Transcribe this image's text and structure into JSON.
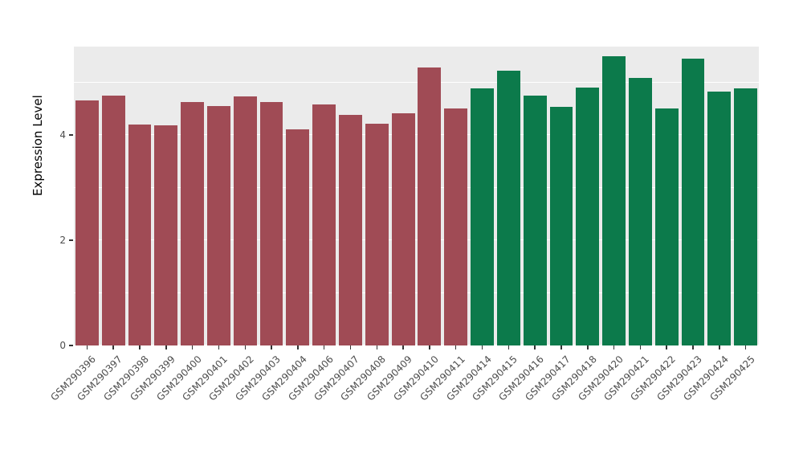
{
  "chart_data": {
    "type": "bar",
    "title": "",
    "xlabel": "",
    "ylabel": "Expression Level",
    "ylim": [
      0,
      5.68
    ],
    "yticks": [
      0,
      2,
      4
    ],
    "yticks_minor": [
      1,
      3,
      5
    ],
    "legend": "none",
    "panel_background": "#EBEBEB",
    "grid_color": "#FFFFFF",
    "group_colors": {
      "maroon": "#A04B55",
      "green": "#0C7A4B"
    },
    "categories": [
      "GSM290396",
      "GSM290397",
      "GSM290398",
      "GSM290399",
      "GSM290400",
      "GSM290401",
      "GSM290402",
      "GSM290403",
      "GSM290404",
      "GSM290406",
      "GSM290407",
      "GSM290408",
      "GSM290409",
      "GSM290410",
      "GSM290411",
      "GSM290414",
      "GSM290415",
      "GSM290416",
      "GSM290417",
      "GSM290418",
      "GSM290420",
      "GSM290421",
      "GSM290422",
      "GSM290423",
      "GSM290424",
      "GSM290425"
    ],
    "bars": [
      {
        "label": "GSM290396",
        "value": 4.65,
        "group": "maroon"
      },
      {
        "label": "GSM290397",
        "value": 4.75,
        "group": "maroon"
      },
      {
        "label": "GSM290398",
        "value": 4.2,
        "group": "maroon"
      },
      {
        "label": "GSM290399",
        "value": 4.18,
        "group": "maroon"
      },
      {
        "label": "GSM290400",
        "value": 4.62,
        "group": "maroon"
      },
      {
        "label": "GSM290401",
        "value": 4.55,
        "group": "maroon"
      },
      {
        "label": "GSM290402",
        "value": 4.73,
        "group": "maroon"
      },
      {
        "label": "GSM290403",
        "value": 4.63,
        "group": "maroon"
      },
      {
        "label": "GSM290404",
        "value": 4.1,
        "group": "maroon"
      },
      {
        "label": "GSM290406",
        "value": 4.58,
        "group": "maroon"
      },
      {
        "label": "GSM290407",
        "value": 4.38,
        "group": "maroon"
      },
      {
        "label": "GSM290408",
        "value": 4.22,
        "group": "maroon"
      },
      {
        "label": "GSM290409",
        "value": 4.42,
        "group": "maroon"
      },
      {
        "label": "GSM290410",
        "value": 5.28,
        "group": "maroon"
      },
      {
        "label": "GSM290411",
        "value": 4.5,
        "group": "maroon"
      },
      {
        "label": "GSM290414",
        "value": 4.88,
        "group": "green"
      },
      {
        "label": "GSM290415",
        "value": 5.22,
        "group": "green"
      },
      {
        "label": "GSM290416",
        "value": 4.75,
        "group": "green"
      },
      {
        "label": "GSM290417",
        "value": 4.53,
        "group": "green"
      },
      {
        "label": "GSM290418",
        "value": 4.9,
        "group": "green"
      },
      {
        "label": "GSM290420",
        "value": 5.5,
        "group": "green"
      },
      {
        "label": "GSM290421",
        "value": 5.08,
        "group": "green"
      },
      {
        "label": "GSM290422",
        "value": 4.5,
        "group": "green"
      },
      {
        "label": "GSM290423",
        "value": 5.45,
        "group": "green"
      },
      {
        "label": "GSM290424",
        "value": 4.82,
        "group": "green"
      },
      {
        "label": "GSM290425",
        "value": 4.88,
        "group": "green"
      }
    ]
  }
}
